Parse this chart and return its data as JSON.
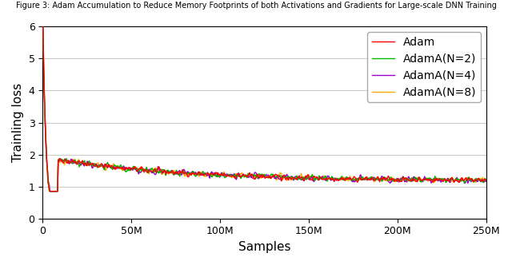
{
  "title": "Figure 3: Adam Accumulation to Reduce Memory Footprints of both Activations and Gradients for Large-scale DNN Training",
  "xlabel": "Samples",
  "ylabel": "Trainling loss",
  "xlim": [
    0,
    250000000
  ],
  "ylim": [
    0,
    6
  ],
  "yticks": [
    0,
    1,
    2,
    3,
    4,
    5,
    6
  ],
  "xtick_labels": [
    "0",
    "50M",
    "100M",
    "150M",
    "200M",
    "250M"
  ],
  "xtick_positions": [
    0,
    50000000,
    100000000,
    150000000,
    200000000,
    250000000
  ],
  "series": [
    {
      "label": "Adam",
      "color": "#ff0000",
      "lw": 1.0,
      "zorder": 4
    },
    {
      "label": "AdamA(N=2)",
      "color": "#00bb00",
      "lw": 1.0,
      "zorder": 3
    },
    {
      "label": "AdamA(N=4)",
      "color": "#9900cc",
      "lw": 1.0,
      "zorder": 2
    },
    {
      "label": "AdamA(N=8)",
      "color": "#ffaa00",
      "lw": 1.0,
      "zorder": 1
    }
  ],
  "n_points": 800,
  "total_samples": 250000000,
  "seed": 42,
  "legend_loc": "upper right",
  "grid": true,
  "grid_color": "#cccccc",
  "background_color": "#ffffff",
  "title_fontsize": 7,
  "axis_label_fontsize": 11,
  "tick_fontsize": 9,
  "legend_fontsize": 10
}
